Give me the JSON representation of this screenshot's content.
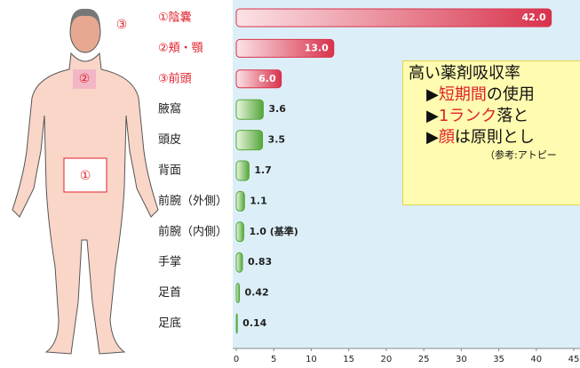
{
  "chart_data": {
    "type": "bar",
    "categories": [
      "①陰嚢",
      "②頬・顎",
      "③前頭",
      "腋窩",
      "頭皮",
      "背面",
      "前腕（外側）",
      "前腕（内側）",
      "手掌",
      "足首",
      "足底"
    ],
    "values": [
      42.0,
      13.0,
      6.0,
      3.6,
      3.5,
      1.7,
      1.1,
      1.0,
      0.83,
      0.42,
      0.14
    ],
    "value_labels": [
      "42.0",
      "13.0",
      "6.0",
      "3.6",
      "3.5",
      "1.7",
      "1.1",
      "1.0 (基準)",
      "0.83",
      "0.42",
      "0.14"
    ],
    "colors": [
      "#d8324c",
      "#d8324c",
      "#d8324c",
      "#55a63a",
      "#55a63a",
      "#55a63a",
      "#55a63a",
      "#55a63a",
      "#55a63a",
      "#55a63a",
      "#55a63a"
    ],
    "label_colors": [
      "#e0202a",
      "#e0202a",
      "#e0202a",
      "#222222",
      "#222222",
      "#222222",
      "#222222",
      "#222222",
      "#222222",
      "#222222",
      "#222222"
    ],
    "xlim": [
      0,
      45
    ],
    "xticks": [
      0,
      5,
      10,
      15,
      20,
      25,
      30,
      35,
      40,
      45
    ],
    "grid": false
  },
  "figure": {
    "labels": [
      "③",
      "②",
      "①"
    ]
  },
  "note": {
    "title": "高い薬剤吸収率",
    "lines": [
      [
        "▶",
        "短期間",
        "の使用"
      ],
      [
        "▶",
        "1ランク",
        "落と"
      ],
      [
        "▶",
        "顔",
        "は原則とし"
      ]
    ],
    "source": "（参考:アトピー"
  }
}
